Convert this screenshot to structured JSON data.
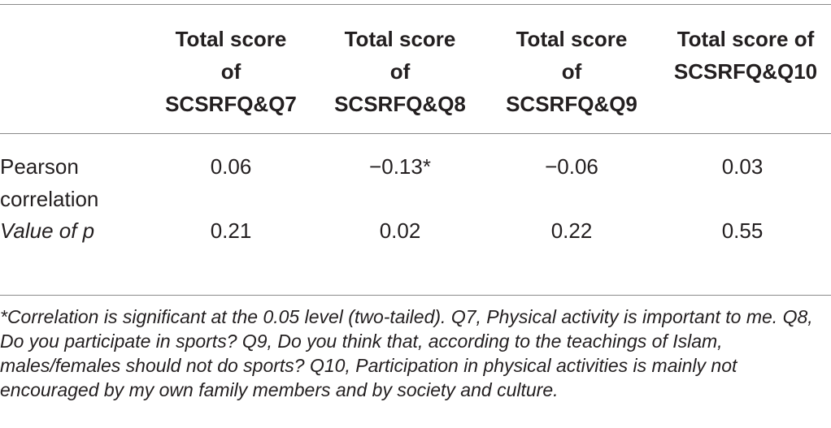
{
  "table": {
    "columns": [
      "Total score\nof\nSCSRFQ&Q7",
      "Total score\nof\nSCSRFQ&Q8",
      "Total score\nof\nSCSRFQ&Q9",
      "Total score of\nSCSRFQ&Q10"
    ],
    "rows": [
      {
        "label": "Pearson\ncorrelation",
        "values": [
          "0.06",
          "−0.13*",
          "−0.06",
          "0.03"
        ]
      },
      {
        "label": "Value of p",
        "values": [
          "0.21",
          "0.02",
          "0.22",
          "0.55"
        ]
      }
    ]
  },
  "footnote": "*Correlation is significant at the 0.05 level (two-tailed). Q7, Physical activity is important to me. Q8, Do you participate in sports? Q9, Do you think that, according to the teachings of Islam, males/females should not do sports? Q10, Participation in physical activities is mainly not encouraged by my own family members and by society and culture."
}
